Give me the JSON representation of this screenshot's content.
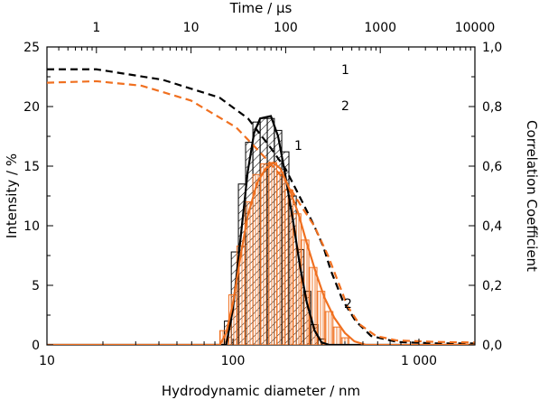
{
  "chart_data": {
    "type": "bar",
    "title": "",
    "xlabel": "Hydrodynamic diameter / nm",
    "ylabel": "Intensity / %",
    "x_top_label": "Time / µs",
    "y_right_label": "Correlation Coefficient",
    "x_scale": "log",
    "xlim": [
      10,
      2000
    ],
    "ylim": [
      0,
      25
    ],
    "x_ticks": [
      {
        "value": 10,
        "label": "10"
      },
      {
        "value": 100,
        "label": "100"
      },
      {
        "value": 1000,
        "label": "1 000"
      }
    ],
    "y_ticks": [
      {
        "value": 0,
        "label": "0"
      },
      {
        "value": 5,
        "label": "5"
      },
      {
        "value": 10,
        "label": "10"
      },
      {
        "value": 15,
        "label": "15"
      },
      {
        "value": 20,
        "label": "20"
      },
      {
        "value": 25,
        "label": "25"
      }
    ],
    "x_top_scale": "log",
    "x_top_lim": [
      0.3,
      10000
    ],
    "x_top_ticks": [
      {
        "value": 1,
        "label": "1"
      },
      {
        "value": 10,
        "label": "10"
      },
      {
        "value": 100,
        "label": "100"
      },
      {
        "value": 1000,
        "label": "1000"
      },
      {
        "value": 10000,
        "label": "10000"
      }
    ],
    "y_right_lim": [
      0,
      1.0
    ],
    "y_right_ticks": [
      {
        "value": 0,
        "label": "0,0"
      },
      {
        "value": 0.2,
        "label": "0,2"
      },
      {
        "value": 0.4,
        "label": "0,4"
      },
      {
        "value": 0.6,
        "label": "0,6"
      },
      {
        "value": 0.8,
        "label": "0,8"
      },
      {
        "value": 1.0,
        "label": "1,0"
      }
    ],
    "colors": {
      "sample1": "#000000",
      "sample2": "#f07020"
    },
    "series": [
      {
        "name": "1",
        "kind": "histogram",
        "hatch": "diagonal",
        "color": "#000000",
        "bins": [
          {
            "x0": 90,
            "x1": 98,
            "y": 2.0
          },
          {
            "x0": 98,
            "x1": 107,
            "y": 7.8
          },
          {
            "x0": 107,
            "x1": 117,
            "y": 13.5
          },
          {
            "x0": 117,
            "x1": 128,
            "y": 17.0
          },
          {
            "x0": 128,
            "x1": 140,
            "y": 18.7
          },
          {
            "x0": 140,
            "x1": 153,
            "y": 19.0
          },
          {
            "x0": 153,
            "x1": 167,
            "y": 19.0
          },
          {
            "x0": 167,
            "x1": 183,
            "y": 18.0
          },
          {
            "x0": 183,
            "x1": 200,
            "y": 16.2
          },
          {
            "x0": 200,
            "x1": 219,
            "y": 12.5
          },
          {
            "x0": 219,
            "x1": 240,
            "y": 8.0
          },
          {
            "x0": 240,
            "x1": 262,
            "y": 4.5
          },
          {
            "x0": 262,
            "x1": 287,
            "y": 1.7
          },
          {
            "x0": 287,
            "x1": 314,
            "y": 0.5
          }
        ]
      },
      {
        "name": "2",
        "kind": "histogram",
        "hatch": "vertical",
        "color": "#f07020",
        "bins": [
          {
            "x0": 85,
            "x1": 95,
            "y": 1.2
          },
          {
            "x0": 95,
            "x1": 105,
            "y": 4.2
          },
          {
            "x0": 105,
            "x1": 116,
            "y": 8.3
          },
          {
            "x0": 116,
            "x1": 128,
            "y": 12.0
          },
          {
            "x0": 128,
            "x1": 141,
            "y": 14.3
          },
          {
            "x0": 141,
            "x1": 156,
            "y": 15.2
          },
          {
            "x0": 156,
            "x1": 172,
            "y": 15.3
          },
          {
            "x0": 172,
            "x1": 190,
            "y": 14.5
          },
          {
            "x0": 190,
            "x1": 210,
            "y": 13.0
          },
          {
            "x0": 210,
            "x1": 232,
            "y": 11.0
          },
          {
            "x0": 232,
            "x1": 256,
            "y": 8.8
          },
          {
            "x0": 256,
            "x1": 283,
            "y": 6.5
          },
          {
            "x0": 283,
            "x1": 312,
            "y": 4.5
          },
          {
            "x0": 312,
            "x1": 345,
            "y": 2.8
          },
          {
            "x0": 345,
            "x1": 381,
            "y": 1.5
          },
          {
            "x0": 381,
            "x1": 420,
            "y": 0.6
          }
        ]
      }
    ],
    "distribution_curves": [
      {
        "name": "1",
        "color": "#000000",
        "points": [
          [
            10,
            0
          ],
          [
            92,
            0
          ],
          [
            100,
            3
          ],
          [
            110,
            9
          ],
          [
            120,
            14.5
          ],
          [
            130,
            17.8
          ],
          [
            140,
            19.0
          ],
          [
            160,
            19.2
          ],
          [
            175,
            17.5
          ],
          [
            190,
            14.5
          ],
          [
            210,
            10.5
          ],
          [
            230,
            6.5
          ],
          [
            250,
            3.5
          ],
          [
            275,
            1.2
          ],
          [
            300,
            0.2
          ],
          [
            330,
            0
          ],
          [
            2000,
            0
          ]
        ]
      },
      {
        "name": "2",
        "color": "#f07020",
        "points": [
          [
            10,
            0
          ],
          [
            85,
            0
          ],
          [
            92,
            1.0
          ],
          [
            100,
            3.5
          ],
          [
            110,
            7.5
          ],
          [
            120,
            10.8
          ],
          [
            135,
            13.6
          ],
          [
            150,
            14.8
          ],
          [
            165,
            15.3
          ],
          [
            180,
            14.8
          ],
          [
            200,
            13.2
          ],
          [
            225,
            11.0
          ],
          [
            250,
            8.5
          ],
          [
            280,
            6.0
          ],
          [
            310,
            4.0
          ],
          [
            350,
            2.3
          ],
          [
            400,
            1.0
          ],
          [
            450,
            0.3
          ],
          [
            520,
            0
          ],
          [
            2000,
            0
          ]
        ]
      }
    ],
    "correlation_curves": [
      {
        "name": "1",
        "color": "#000000",
        "dash": "dashed",
        "x_unit": "µs",
        "points": [
          [
            0.3,
            0.925
          ],
          [
            1,
            0.925
          ],
          [
            5,
            0.89
          ],
          [
            20,
            0.83
          ],
          [
            40,
            0.76
          ],
          [
            70,
            0.66
          ],
          [
            100,
            0.59
          ],
          [
            150,
            0.48
          ],
          [
            200,
            0.4
          ],
          [
            250,
            0.33
          ],
          [
            300,
            0.25
          ],
          [
            400,
            0.15
          ],
          [
            550,
            0.08
          ],
          [
            800,
            0.03
          ],
          [
            1500,
            0.01
          ],
          [
            4000,
            0.005
          ],
          [
            10000,
            0.005
          ]
        ]
      },
      {
        "name": "2",
        "color": "#f07020",
        "dash": "dashed",
        "x_unit": "µs",
        "points": [
          [
            0.3,
            0.88
          ],
          [
            1,
            0.885
          ],
          [
            3,
            0.87
          ],
          [
            10,
            0.82
          ],
          [
            30,
            0.73
          ],
          [
            60,
            0.63
          ],
          [
            100,
            0.55
          ],
          [
            150,
            0.46
          ],
          [
            200,
            0.4
          ],
          [
            280,
            0.3
          ],
          [
            350,
            0.22
          ],
          [
            450,
            0.13
          ],
          [
            600,
            0.07
          ],
          [
            900,
            0.03
          ],
          [
            1500,
            0.015
          ],
          [
            4000,
            0.01
          ],
          [
            10000,
            0.008
          ]
        ]
      }
    ],
    "annotations": [
      {
        "text": "1",
        "where": "upper-right legend, first line"
      },
      {
        "text": "2",
        "where": "upper-right legend, second line"
      },
      {
        "text": "1",
        "where": "right of black distribution peak"
      },
      {
        "text": "2",
        "where": "right of orange distribution tail"
      }
    ]
  }
}
